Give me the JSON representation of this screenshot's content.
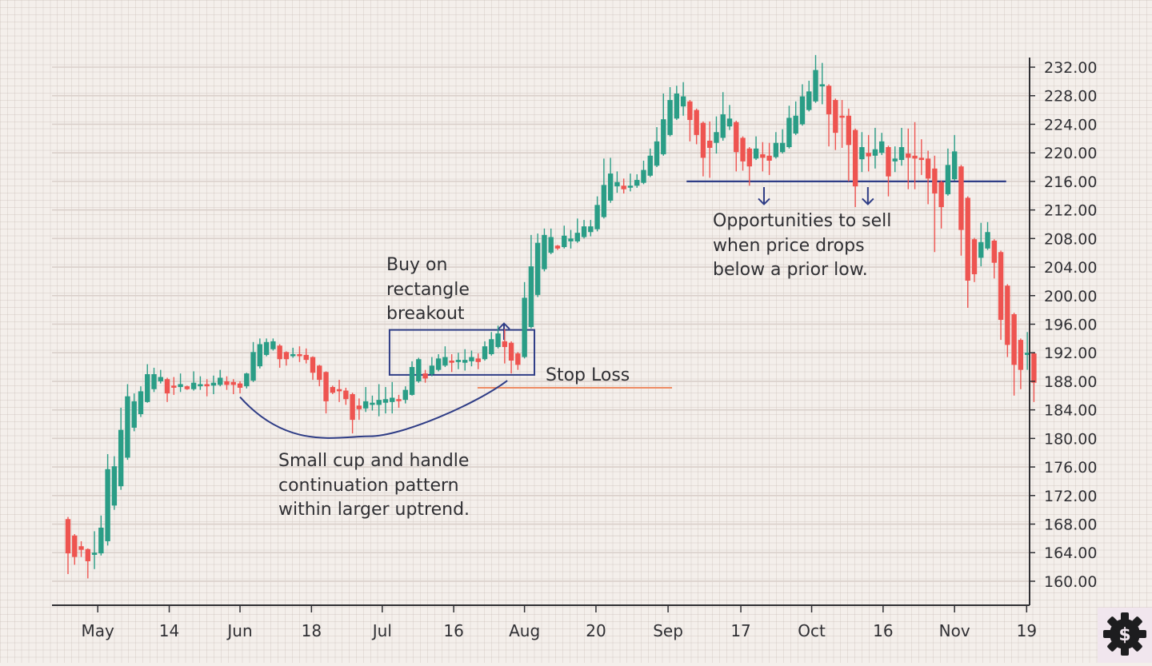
{
  "chart_data": {
    "type": "candlestick",
    "title": "",
    "xlabel": "",
    "ylabel": "",
    "ylim": [
      157.5,
      234.5
    ],
    "y_ticks": [
      "160.00",
      "164.00",
      "168.00",
      "172.00",
      "176.00",
      "180.00",
      "184.00",
      "188.00",
      "192.00",
      "196.00",
      "200.00",
      "204.00",
      "208.00",
      "212.00",
      "216.00",
      "220.00",
      "224.00",
      "228.00",
      "232.00"
    ],
    "x_ticks": [
      {
        "label": "May",
        "at": 5.5
      },
      {
        "label": "14",
        "at": 16.3
      },
      {
        "label": "Jun",
        "at": 27
      },
      {
        "label": "18",
        "at": 37.8
      },
      {
        "label": "Jul",
        "at": 48.5
      },
      {
        "label": "16",
        "at": 59.3
      },
      {
        "label": "Aug",
        "at": 70
      },
      {
        "label": "20",
        "at": 80.8
      },
      {
        "label": "Sep",
        "at": 91.7
      },
      {
        "label": "17",
        "at": 102.7
      },
      {
        "label": "Oct",
        "at": 113.4
      },
      {
        "label": "16",
        "at": 124.2
      },
      {
        "label": "Nov",
        "at": 135
      },
      {
        "label": "19",
        "at": 145.9
      }
    ],
    "grid": true,
    "colors": {
      "up": "#2a9d86",
      "down": "#ee5450",
      "annotation": "#2f3d86",
      "stop_loss": "#ee8c64",
      "background": "#f4efeb"
    },
    "ohlc_fields": [
      "open",
      "high",
      "low",
      "close"
    ],
    "ohlc": [
      [
        168.7,
        169,
        161,
        163.9
      ],
      [
        166.4,
        166.6,
        162.3,
        163.4
      ],
      [
        164.9,
        165.6,
        163.4,
        164.4
      ],
      [
        164.5,
        164.6,
        160.4,
        162.8
      ],
      [
        163.7,
        167,
        161.7,
        164
      ],
      [
        163.9,
        169.2,
        163.6,
        167.5
      ],
      [
        165.6,
        177.8,
        165,
        175.7
      ],
      [
        170.6,
        177.5,
        170,
        176.1
      ],
      [
        173.3,
        184.3,
        172.8,
        181.2
      ],
      [
        177.3,
        187.6,
        177,
        185.9
      ],
      [
        181.5,
        186.3,
        181,
        185.2
      ],
      [
        183.4,
        187.3,
        183,
        186.6
      ],
      [
        185.1,
        190.4,
        185,
        189
      ],
      [
        186.9,
        189.9,
        186.5,
        189
      ],
      [
        188,
        189.6,
        187.7,
        188.6
      ],
      [
        188.3,
        188.5,
        185.1,
        186.3
      ],
      [
        187.4,
        188.6,
        186.1,
        187.1
      ],
      [
        187.2,
        189.1,
        186.5,
        187.6
      ],
      [
        187.3,
        187.4,
        186.8,
        186.9
      ],
      [
        186.9,
        189.4,
        186.7,
        187.8
      ],
      [
        187.3,
        188.7,
        186.8,
        187.6
      ],
      [
        187.6,
        188.3,
        185.9,
        187.3
      ],
      [
        187.4,
        188.8,
        186.2,
        187.8
      ],
      [
        187.5,
        189.6,
        187.3,
        188.5
      ],
      [
        188,
        188.7,
        186.8,
        187.5
      ],
      [
        187.9,
        188.3,
        186.2,
        187.5
      ],
      [
        187.7,
        188,
        186.3,
        187.1
      ],
      [
        187.3,
        189.2,
        187,
        189.1
      ],
      [
        188.1,
        193.5,
        187.9,
        192.1
      ],
      [
        190.1,
        194,
        189.8,
        193.2
      ],
      [
        191.7,
        194,
        191.5,
        193.5
      ],
      [
        192.5,
        194,
        192.3,
        193.6
      ],
      [
        193,
        193.2,
        189.9,
        191.1
      ],
      [
        192.1,
        192.2,
        190.2,
        191.1
      ],
      [
        191.6,
        192.7,
        191.3,
        191.8
      ],
      [
        191.8,
        192.9,
        190.7,
        191.7
      ],
      [
        191.7,
        192.6,
        190.5,
        191
      ],
      [
        191.4,
        191.5,
        188.2,
        189.2
      ],
      [
        190.2,
        190.3,
        187.3,
        188.2
      ],
      [
        189.3,
        189.4,
        183.5,
        185.2
      ],
      [
        187.2,
        187.4,
        186.2,
        186.4
      ],
      [
        186.9,
        188.2,
        185.1,
        186.6
      ],
      [
        186.7,
        187.1,
        184.7,
        185.5
      ],
      [
        186.2,
        186.4,
        180.7,
        182.6
      ],
      [
        184.6,
        185.6,
        182.6,
        184.1
      ],
      [
        184.2,
        187.2,
        183.7,
        185.2
      ],
      [
        184.7,
        186,
        183.9,
        185
      ],
      [
        184.7,
        187.6,
        183.1,
        185.4
      ],
      [
        185,
        187.2,
        183.5,
        185.5
      ],
      [
        185.1,
        187.9,
        183.5,
        185.7
      ],
      [
        185.5,
        186.1,
        184.3,
        185.3
      ],
      [
        185.4,
        187.3,
        184.9,
        186.8
      ],
      [
        186.1,
        190.8,
        186,
        190
      ],
      [
        188,
        191.3,
        187.8,
        191.1
      ],
      [
        189.1,
        189.6,
        187.8,
        188.4
      ],
      [
        189,
        191.4,
        188.7,
        190.2
      ],
      [
        189.6,
        191.8,
        189.4,
        191.2
      ],
      [
        190.2,
        192.9,
        190,
        191.4
      ],
      [
        190.9,
        191.8,
        189.3,
        190.6
      ],
      [
        190.7,
        192,
        189.7,
        191
      ],
      [
        190.6,
        192.5,
        189.5,
        191
      ],
      [
        190.8,
        192.3,
        190.1,
        191.4
      ],
      [
        191.2,
        191.9,
        189.7,
        190.7
      ],
      [
        191.1,
        193.6,
        190.9,
        192.9
      ],
      [
        191.8,
        194.9,
        191.6,
        193.9
      ],
      [
        192.8,
        195.8,
        192.6,
        194.7
      ],
      [
        193.6,
        195.3,
        190.5,
        192.8
      ],
      [
        193.4,
        193.6,
        189.1,
        190.9
      ],
      [
        191.9,
        192.1,
        189.6,
        190.3
      ],
      [
        191.4,
        201.9,
        191.2,
        199.7
      ],
      [
        195.6,
        208.5,
        195.4,
        204.1
      ],
      [
        200.1,
        208.7,
        199.8,
        207.4
      ],
      [
        203.7,
        209.4,
        203.4,
        208.5
      ],
      [
        206,
        209.4,
        205.8,
        208.2
      ],
      [
        207,
        207.1,
        206.4,
        206.6
      ],
      [
        206.8,
        209.8,
        206.6,
        208.4
      ],
      [
        207.6,
        209.2,
        206.6,
        208
      ],
      [
        207.6,
        210.8,
        207.4,
        208.8
      ],
      [
        208.2,
        210.6,
        208,
        209.7
      ],
      [
        208.9,
        210.6,
        208.3,
        209.7
      ],
      [
        209.3,
        213.9,
        209,
        212.7
      ],
      [
        211,
        219.2,
        210.8,
        215.5
      ],
      [
        213.3,
        219.3,
        213,
        217.1
      ],
      [
        215.3,
        217.4,
        214.4,
        215.9
      ],
      [
        215.4,
        216.4,
        214.3,
        214.9
      ],
      [
        215.2,
        217.1,
        214.6,
        215.4
      ],
      [
        215.4,
        217,
        215.1,
        216.2
      ],
      [
        215.8,
        218.9,
        215.6,
        217.6
      ],
      [
        216.8,
        220.6,
        216.6,
        219.6
      ],
      [
        218.2,
        223.6,
        218,
        221.6
      ],
      [
        219.8,
        228.3,
        219.6,
        224.7
      ],
      [
        222.5,
        229.2,
        222.3,
        227.4
      ],
      [
        224.8,
        229.4,
        224.6,
        228.3
      ],
      [
        226.5,
        229.9,
        225.2,
        227.9
      ],
      [
        227.2,
        227.4,
        221.6,
        224.6
      ],
      [
        226,
        226.2,
        221.2,
        222.5
      ],
      [
        224.2,
        224.4,
        216.7,
        219.3
      ],
      [
        221.7,
        224.4,
        216.5,
        220.7
      ],
      [
        221.4,
        225.1,
        219.9,
        222.9
      ],
      [
        222.1,
        228.5,
        221.7,
        225.4
      ],
      [
        223.7,
        226.7,
        223.2,
        224.8
      ],
      [
        224.3,
        224.5,
        217.4,
        220.1
      ],
      [
        222.1,
        222.3,
        217.5,
        218.8
      ],
      [
        220.6,
        220.8,
        215.4,
        218.1
      ],
      [
        219.2,
        222.3,
        219,
        220.6
      ],
      [
        219.8,
        221.5,
        217.4,
        219.3
      ],
      [
        219.6,
        221.4,
        216.9,
        218.9
      ],
      [
        219.4,
        222.9,
        219.2,
        221.4
      ],
      [
        220.1,
        223.3,
        219.9,
        221.4
      ],
      [
        220.8,
        226.6,
        220.6,
        224.9
      ],
      [
        222.7,
        227.2,
        222.5,
        225.2
      ],
      [
        224,
        229.6,
        223.8,
        227.9
      ],
      [
        226,
        230.1,
        225.8,
        228.6
      ],
      [
        227.2,
        233.7,
        227,
        231.6
      ],
      [
        229.3,
        232.6,
        226.8,
        229.6
      ],
      [
        229.4,
        229.6,
        220.9,
        225.4
      ],
      [
        227.4,
        227.6,
        220.4,
        222.8
      ],
      [
        225.2,
        227.4,
        220.7,
        225
      ],
      [
        225.2,
        226.2,
        216,
        221.1
      ],
      [
        223.2,
        223.4,
        212.4,
        215.3
      ],
      [
        219.1,
        222.9,
        217.3,
        220.8
      ],
      [
        220,
        222.5,
        217.4,
        219.5
      ],
      [
        219.6,
        223.5,
        217.8,
        220.5
      ],
      [
        220,
        222.8,
        219.7,
        221.6
      ],
      [
        220.8,
        221,
        213.9,
        216.7
      ],
      [
        218.8,
        220.9,
        217.3,
        219.2
      ],
      [
        219,
        223.5,
        218.2,
        220.8
      ],
      [
        219.9,
        223.4,
        214.9,
        219.3
      ],
      [
        219.6,
        224.3,
        214.9,
        219.2
      ],
      [
        219.3,
        221.9,
        216.9,
        219
      ],
      [
        219.2,
        220.3,
        212.8,
        216.4
      ],
      [
        217.8,
        219.6,
        206.1,
        214.3
      ],
      [
        215.9,
        216.1,
        209.4,
        212.4
      ],
      [
        214.2,
        220.6,
        214,
        218.3
      ],
      [
        216.3,
        222.5,
        216.1,
        220.2
      ],
      [
        218.1,
        218.3,
        205.6,
        209.2
      ],
      [
        213.7,
        213.9,
        198.3,
        202.1
      ],
      [
        207.9,
        208.1,
        201.9,
        203
      ],
      [
        205.3,
        210.2,
        204.1,
        207.5
      ],
      [
        206.6,
        210.3,
        206.4,
        208.9
      ],
      [
        207.7,
        207.9,
        202.4,
        204.6
      ],
      [
        206.1,
        206.3,
        193.8,
        196.6
      ],
      [
        201.4,
        201.6,
        191.4,
        193.1
      ],
      [
        197.4,
        197.6,
        186,
        190.3
      ],
      [
        193.8,
        194,
        186.9,
        189.6
      ],
      [
        191.7,
        194.9,
        189.6,
        192
      ],
      [
        191.9,
        192.1,
        185.1,
        187.8
      ]
    ],
    "annotations": {
      "rectangle": {
        "x_from": 49.6,
        "x_to": 71.5,
        "y_from": 188.9,
        "y_to": 195.2
      },
      "stop_loss_line": {
        "x_from": 62.9,
        "x_to": 92.3,
        "y": 187.1
      },
      "support_line": {
        "x_from": 94.5,
        "x_to": 142.8,
        "y": 216.0
      },
      "cup_curve": {
        "start": [
          27,
          185.8
        ],
        "bottom": [
          46.6,
          180.3
        ],
        "end": [
          67.4,
          188.1
        ]
      },
      "up_arrows": [
        {
          "x": 66.9,
          "y_from": 193.8,
          "y_to": 196.1
        }
      ],
      "down_arrows": [
        {
          "x": 106.2,
          "y_from": 215.2,
          "y_to": 212.8
        },
        {
          "x": 121.9,
          "y_from": 215.2,
          "y_to": 212.8
        }
      ],
      "texts": {
        "breakout": [
          "Buy on",
          "rectangle",
          "breakout"
        ],
        "stop_loss": "Stop Loss",
        "cup": [
          "Small cup and handle",
          "continuation pattern",
          "within larger uptrend."
        ],
        "sell": [
          "Opportunities to sell",
          "when price drops",
          "below a prior low."
        ]
      }
    }
  },
  "corner_icon": "gear-dollar-icon"
}
